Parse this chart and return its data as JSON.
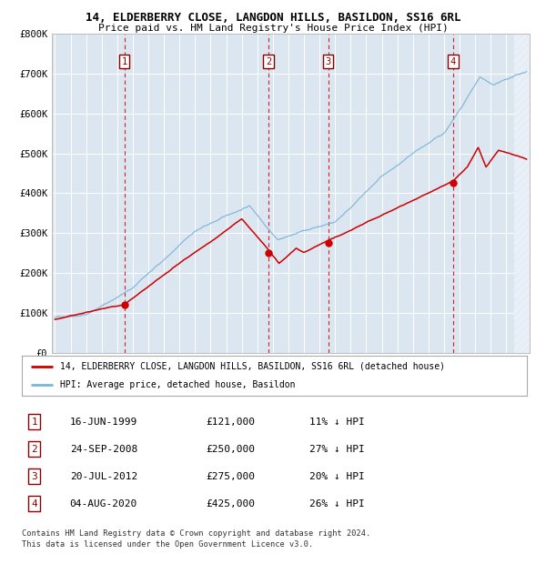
{
  "title_line1": "14, ELDERBERRY CLOSE, LANGDON HILLS, BASILDON, SS16 6RL",
  "title_line2": "Price paid vs. HM Land Registry's House Price Index (HPI)",
  "plot_bg_color": "#dce6f1",
  "red_line_color": "#cc0000",
  "blue_line_color": "#7ab4d8",
  "dashed_line_color": "#cc0000",
  "ylim": [
    0,
    800000
  ],
  "yticks": [
    0,
    100000,
    200000,
    300000,
    400000,
    500000,
    600000,
    700000,
    800000
  ],
  "ytick_labels": [
    "£0",
    "£100K",
    "£200K",
    "£300K",
    "£400K",
    "£500K",
    "£600K",
    "£700K",
    "£800K"
  ],
  "xlim_start": 1994.8,
  "xlim_end": 2025.5,
  "transactions": [
    {
      "label": "1",
      "date": 1999.46,
      "price": 121000,
      "pct": "11% ↓ HPI",
      "date_str": "16-JUN-1999",
      "price_str": "£121,000"
    },
    {
      "label": "2",
      "date": 2008.73,
      "price": 250000,
      "pct": "27% ↓ HPI",
      "date_str": "24-SEP-2008",
      "price_str": "£250,000"
    },
    {
      "label": "3",
      "date": 2012.55,
      "price": 275000,
      "pct": "20% ↓ HPI",
      "date_str": "20-JUL-2012",
      "price_str": "£275,000"
    },
    {
      "label": "4",
      "date": 2020.59,
      "price": 425000,
      "pct": "26% ↓ HPI",
      "date_str": "04-AUG-2020",
      "price_str": "£425,000"
    }
  ],
  "legend_line1": "14, ELDERBERRY CLOSE, LANGDON HILLS, BASILDON, SS16 6RL (detached house)",
  "legend_line2": "HPI: Average price, detached house, Basildon",
  "footer_line1": "Contains HM Land Registry data © Crown copyright and database right 2024.",
  "footer_line2": "This data is licensed under the Open Government Licence v3.0."
}
